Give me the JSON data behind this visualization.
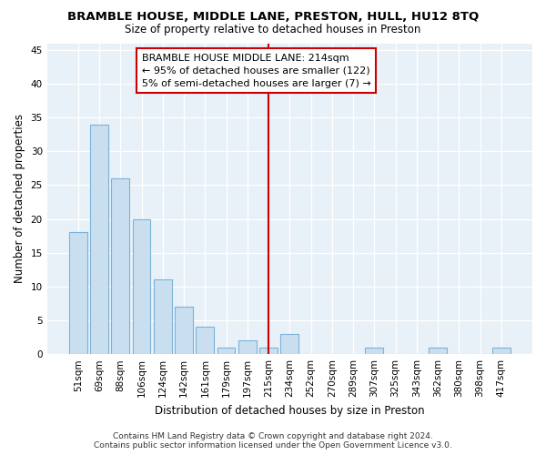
{
  "title": "BRAMBLE HOUSE, MIDDLE LANE, PRESTON, HULL, HU12 8TQ",
  "subtitle": "Size of property relative to detached houses in Preston",
  "xlabel": "Distribution of detached houses by size in Preston",
  "ylabel": "Number of detached properties",
  "categories": [
    "51sqm",
    "69sqm",
    "88sqm",
    "106sqm",
    "124sqm",
    "142sqm",
    "161sqm",
    "179sqm",
    "197sqm",
    "215sqm",
    "234sqm",
    "252sqm",
    "270sqm",
    "289sqm",
    "307sqm",
    "325sqm",
    "343sqm",
    "362sqm",
    "380sqm",
    "398sqm",
    "417sqm"
  ],
  "values": [
    18,
    34,
    26,
    20,
    11,
    7,
    4,
    1,
    2,
    1,
    3,
    0,
    0,
    0,
    1,
    0,
    0,
    1,
    0,
    0,
    1
  ],
  "bar_color": "#c9dff0",
  "bar_edge_color": "#7ab3d9",
  "vline_x_index": 9,
  "vline_color": "#cc0000",
  "annotation_lines": [
    "BRAMBLE HOUSE MIDDLE LANE: 214sqm",
    "← 95% of detached houses are smaller (122)",
    "5% of semi-detached houses are larger (7) →"
  ],
  "ylim": [
    0,
    46
  ],
  "yticks": [
    0,
    5,
    10,
    15,
    20,
    25,
    30,
    35,
    40,
    45
  ],
  "footer_line1": "Contains HM Land Registry data © Crown copyright and database right 2024.",
  "footer_line2": "Contains public sector information licensed under the Open Government Licence v3.0.",
  "fig_bg_color": "#ffffff",
  "plot_bg_color": "#e8f0f8",
  "grid_color": "#ffffff",
  "title_fontsize": 9.5,
  "subtitle_fontsize": 8.5,
  "axis_label_fontsize": 8.5,
  "tick_fontsize": 7.5,
  "annotation_fontsize": 8,
  "footer_fontsize": 6.5
}
